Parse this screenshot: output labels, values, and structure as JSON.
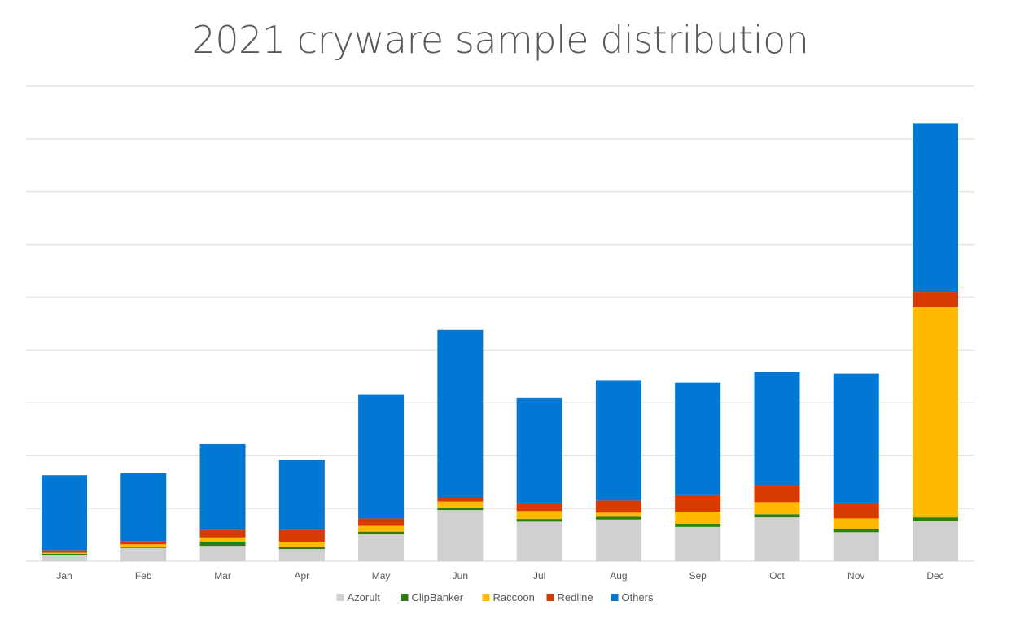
{
  "chart_data": {
    "type": "bar",
    "stacked": true,
    "title": "2021 cryware sample distribution",
    "xlabel": "",
    "ylabel": "",
    "y_units": "relative (gridline units; no numeric y-axis labels shown)",
    "ylim": [
      0,
      9
    ],
    "y_gridlines": [
      1,
      2,
      3,
      4,
      5,
      6,
      7,
      8,
      9
    ],
    "grid": true,
    "legend_position": "bottom",
    "categories": [
      "Jan",
      "Feb",
      "Mar",
      "Apr",
      "May",
      "Jun",
      "Jul",
      "Aug",
      "Sep",
      "Oct",
      "Nov",
      "Dec"
    ],
    "series": [
      {
        "name": "Azorult",
        "color": "#d0d0d0",
        "values": [
          0.12,
          0.25,
          0.29,
          0.23,
          0.51,
          0.97,
          0.75,
          0.79,
          0.65,
          0.83,
          0.55,
          0.77
        ]
      },
      {
        "name": "ClipBanker",
        "color": "#2e7d0f",
        "values": [
          0.02,
          0.02,
          0.08,
          0.05,
          0.05,
          0.05,
          0.05,
          0.05,
          0.06,
          0.06,
          0.06,
          0.06
        ]
      },
      {
        "name": "Raccoon",
        "color": "#ffb900",
        "values": [
          0.02,
          0.05,
          0.08,
          0.09,
          0.11,
          0.11,
          0.15,
          0.08,
          0.23,
          0.23,
          0.2,
          3.99
        ]
      },
      {
        "name": "Redline",
        "color": "#d83b01",
        "values": [
          0.05,
          0.06,
          0.14,
          0.22,
          0.14,
          0.08,
          0.15,
          0.23,
          0.31,
          0.32,
          0.29,
          0.28
        ]
      },
      {
        "name": "Others",
        "color": "#0078d4",
        "values": [
          1.42,
          1.29,
          1.63,
          1.33,
          2.34,
          3.17,
          2.0,
          2.28,
          2.13,
          2.14,
          2.45,
          3.2
        ]
      }
    ]
  },
  "colors": {
    "title": "#595959",
    "gridline": "#e3e3e3",
    "axis_text": "#595959"
  }
}
